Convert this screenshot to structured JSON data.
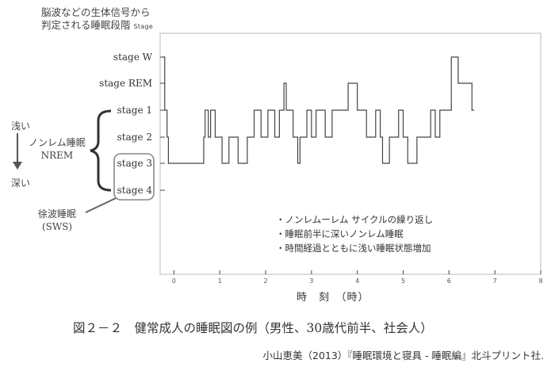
{
  "y_title_line1": "脳波などの生体信号から",
  "y_title_line2": "判定される睡眠段階",
  "y_title_unit": "Stage",
  "stages": [
    "stage W",
    "stage REM",
    "stage 1",
    "stage 2",
    "stage 3",
    "stage 4"
  ],
  "depth_shallow": "浅い",
  "depth_deep": "深い",
  "nrem_label_line1": "ノンレム睡眠",
  "nrem_label_line2": "NREM",
  "sws_label_line1": "徐波睡眠",
  "sws_label_line2": "(SWS)",
  "notes": [
    "・ノンレムーレム サイクルの繰り返し",
    "・睡眠前半に深いノンレム睡眠",
    "・時間経過とともに浅い睡眠状態増加"
  ],
  "caption": "図２－２　健常成人の睡眠図の例（男性、30歳代前半、社会人）",
  "source": "小山恵美（2013）『睡眠環境と寝具 - 睡眠編』北斗プリント社.",
  "chart_data": {
    "type": "line",
    "title": "",
    "xlabel": "時　刻　（時）",
    "ylabel": "脳波などの生体信号から判定される睡眠段階 Stage",
    "xlim": [
      -0.3,
      8
    ],
    "x_ticks": [
      0,
      1,
      2,
      3,
      4,
      5,
      6,
      7,
      8
    ],
    "y_categories": [
      "stage W",
      "stage REM",
      "stage 1",
      "stage 2",
      "stage 3",
      "stage 4"
    ],
    "series": [
      {
        "name": "",
        "x": [
          -0.25,
          -0.2,
          -0.15,
          -0.12,
          0.0,
          0.3,
          0.5,
          0.65,
          0.68,
          0.75,
          0.8,
          0.9,
          1.0,
          1.05,
          1.2,
          1.4,
          1.6,
          1.75,
          1.9,
          2.05,
          2.2,
          2.3,
          2.4,
          2.45,
          2.6,
          2.7,
          2.75,
          2.8,
          2.9,
          3.0,
          3.1,
          3.3,
          3.45,
          3.6,
          3.8,
          3.9,
          4.0,
          4.2,
          4.4,
          4.5,
          4.55,
          4.7,
          4.8,
          4.9,
          5.0,
          5.1,
          5.3,
          5.5,
          5.6,
          5.7,
          5.8,
          5.95,
          6.05,
          6.2,
          6.35,
          6.5,
          6.55
        ],
        "y": [
          "stage W",
          "stage 1",
          "stage 2",
          "stage 3",
          "stage 3",
          "stage 3",
          "stage 3",
          "stage 2",
          "stage 1",
          "stage 2",
          "stage 1",
          "stage 2",
          "stage 2",
          "stage 3",
          "stage 2",
          "stage 3",
          "stage 2",
          "stage 1",
          "stage 2",
          "stage 1",
          "stage 2",
          "stage 1",
          "stage REM",
          "stage 1",
          "stage 2",
          "stage 3",
          "stage 2",
          "stage 2",
          "stage 1",
          "stage 2",
          "stage 1",
          "stage 2",
          "stage 1",
          "stage 1",
          "stage REM",
          "stage REM",
          "stage 1",
          "stage 2",
          "stage 1",
          "stage 2",
          "stage 3",
          "stage 2",
          "stage 2",
          "stage 1",
          "stage 2",
          "stage 3",
          "stage 2",
          "stage 2",
          "stage 1",
          "stage 2",
          "stage 1",
          "stage 1",
          "stage W",
          "stage REM",
          "stage REM",
          "stage 1",
          "stage 1"
        ]
      }
    ]
  }
}
